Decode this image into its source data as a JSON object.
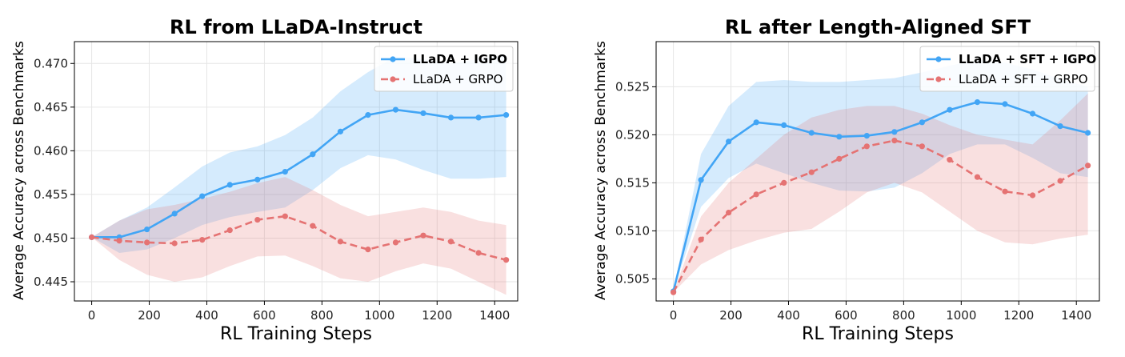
{
  "chart_data": [
    {
      "type": "line",
      "title": "RL from LLaDA-Instruct",
      "xlabel": "RL Training Steps",
      "ylabel": "Average Accuracy across Benchmarks",
      "xlim": [
        -60,
        1480
      ],
      "ylim": [
        0.4428,
        0.4725
      ],
      "xticks": [
        0,
        200,
        400,
        600,
        800,
        1000,
        1200,
        1400
      ],
      "yticks": [
        0.445,
        0.45,
        0.455,
        0.46,
        0.465,
        0.47
      ],
      "ytick_labels": [
        "0.445",
        "0.450",
        "0.455",
        "0.460",
        "0.465",
        "0.470"
      ],
      "grid": true,
      "legend_position": "top-right",
      "series": [
        {
          "name": "LLaDA + IGPO",
          "bold_label": true,
          "color": "#42a5f5",
          "style": "solid",
          "x": [
            0,
            96,
            192,
            288,
            384,
            480,
            576,
            672,
            768,
            864,
            960,
            1056,
            1152,
            1248,
            1344,
            1440
          ],
          "y": [
            0.4501,
            0.4501,
            0.451,
            0.4528,
            0.4548,
            0.4561,
            0.4567,
            0.4576,
            0.4596,
            0.4622,
            0.4641,
            0.4647,
            0.4643,
            0.4638,
            0.4638,
            0.4641
          ],
          "band_upper": [
            0.4501,
            0.452,
            0.4535,
            0.4558,
            0.4582,
            0.4598,
            0.4605,
            0.4618,
            0.4638,
            0.4668,
            0.469,
            0.4708,
            0.4705,
            0.47,
            0.4705,
            0.471
          ],
          "band_lower": [
            0.4501,
            0.4483,
            0.4487,
            0.45,
            0.4515,
            0.4524,
            0.453,
            0.4535,
            0.4555,
            0.458,
            0.4595,
            0.459,
            0.4578,
            0.4568,
            0.4568,
            0.457
          ]
        },
        {
          "name": "LLaDA + GRPO",
          "bold_label": false,
          "color": "#e57373",
          "style": "dashed",
          "x": [
            0,
            96,
            192,
            288,
            384,
            480,
            576,
            672,
            768,
            864,
            960,
            1056,
            1152,
            1248,
            1344,
            1440
          ],
          "y": [
            0.4501,
            0.4497,
            0.4495,
            0.4494,
            0.4498,
            0.4509,
            0.4521,
            0.4525,
            0.4514,
            0.4496,
            0.4487,
            0.4495,
            0.4503,
            0.4496,
            0.4483,
            0.4475
          ],
          "band_upper": [
            0.4501,
            0.452,
            0.4533,
            0.4538,
            0.4545,
            0.4553,
            0.4563,
            0.457,
            0.4555,
            0.4538,
            0.4525,
            0.453,
            0.4535,
            0.453,
            0.452,
            0.4515
          ],
          "band_lower": [
            0.4501,
            0.4475,
            0.4458,
            0.445,
            0.4455,
            0.4468,
            0.4479,
            0.448,
            0.4468,
            0.4454,
            0.445,
            0.4462,
            0.4471,
            0.4465,
            0.445,
            0.4435
          ]
        }
      ]
    },
    {
      "type": "line",
      "title": "RL after Length-Aligned SFT",
      "xlabel": "RL Training Steps",
      "ylabel": "Average Accuracy across Benchmarks",
      "xlim": [
        -60,
        1480
      ],
      "ylim": [
        0.5027,
        0.5297
      ],
      "xticks": [
        0,
        200,
        400,
        600,
        800,
        1000,
        1200,
        1400
      ],
      "yticks": [
        0.505,
        0.51,
        0.515,
        0.52,
        0.525
      ],
      "ytick_labels": [
        "0.505",
        "0.510",
        "0.515",
        "0.520",
        "0.525"
      ],
      "grid": true,
      "legend_position": "top-right",
      "series": [
        {
          "name": "LLaDA + SFT + IGPO",
          "bold_label": true,
          "color": "#42a5f5",
          "style": "solid",
          "x": [
            0,
            96,
            192,
            288,
            384,
            480,
            576,
            672,
            768,
            864,
            960,
            1056,
            1152,
            1248,
            1344,
            1440
          ],
          "y": [
            0.5037,
            0.5153,
            0.5193,
            0.5213,
            0.521,
            0.5202,
            0.5198,
            0.5199,
            0.5203,
            0.5213,
            0.5226,
            0.5234,
            0.5232,
            0.5222,
            0.5209,
            0.5202
          ],
          "band_upper": [
            0.5037,
            0.518,
            0.523,
            0.5255,
            0.5257,
            0.5255,
            0.5255,
            0.5257,
            0.5259,
            0.5265,
            0.5272,
            0.5278,
            0.5275,
            0.5268,
            0.5258,
            0.525
          ],
          "band_lower": [
            0.5037,
            0.5125,
            0.5155,
            0.517,
            0.516,
            0.515,
            0.5142,
            0.5141,
            0.5145,
            0.516,
            0.518,
            0.519,
            0.519,
            0.5176,
            0.516,
            0.5156
          ]
        },
        {
          "name": "LLaDA + SFT + GRPO",
          "bold_label": false,
          "color": "#e57373",
          "style": "dashed",
          "x": [
            0,
            96,
            192,
            288,
            384,
            480,
            576,
            672,
            768,
            864,
            960,
            1056,
            1152,
            1248,
            1344,
            1440
          ],
          "y": [
            0.5036,
            0.5091,
            0.5119,
            0.5138,
            0.515,
            0.5161,
            0.5175,
            0.5188,
            0.5194,
            0.5188,
            0.5174,
            0.5156,
            0.5141,
            0.5137,
            0.5152,
            0.5168
          ],
          "band_upper": [
            0.5036,
            0.5115,
            0.515,
            0.5175,
            0.52,
            0.5218,
            0.5226,
            0.523,
            0.523,
            0.5222,
            0.521,
            0.52,
            0.5195,
            0.519,
            0.5215,
            0.5243
          ],
          "band_lower": [
            0.5036,
            0.5065,
            0.508,
            0.509,
            0.5098,
            0.5102,
            0.512,
            0.514,
            0.515,
            0.514,
            0.512,
            0.51,
            0.5088,
            0.5086,
            0.5092,
            0.5096
          ]
        }
      ]
    }
  ]
}
